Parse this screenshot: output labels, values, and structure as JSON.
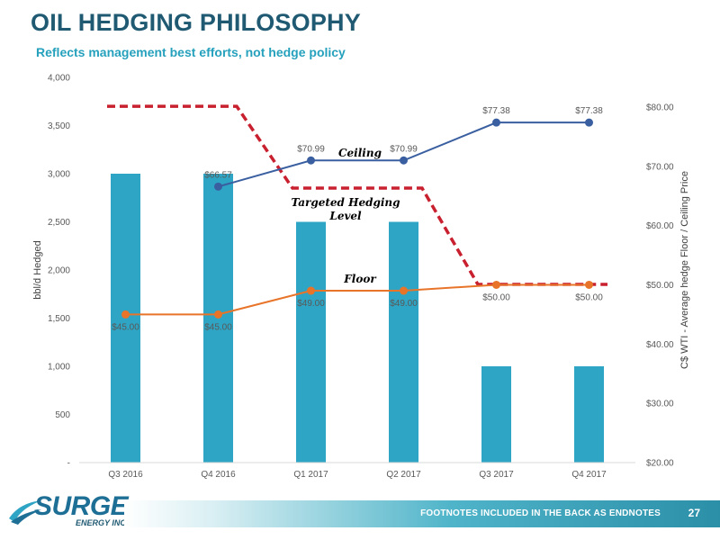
{
  "slide": {
    "title": "OIL HEDGING PHILOSOPHY",
    "subtitle": "Reflects management best efforts, not hedge policy"
  },
  "footer": {
    "note": "FOOTNOTES INCLUDED IN THE BACK AS ENDNOTES",
    "page": "27"
  },
  "logo": {
    "name": "SURGE",
    "sub": "ENERGY INC",
    "icon": "swoosh-logo-icon"
  },
  "chart_data": {
    "type": "bar",
    "categories": [
      "Q3 2016",
      "Q4 2016",
      "Q1 2017",
      "Q2 2017",
      "Q3 2017",
      "Q4 2017"
    ],
    "bars": {
      "values": [
        3000,
        3000,
        2500,
        2500,
        1000,
        1000
      ],
      "color": "#2ea5c4"
    },
    "ylabel_left": "bbl/d Hedged",
    "ylabel_right": "C$ WTI - Average hedge Floor / Ceiling Price",
    "ylim_left": [
      0,
      4000
    ],
    "ylim_right": [
      20,
      85
    ],
    "left_ticks": [
      "-",
      "500",
      "1,000",
      "1,500",
      "2,000",
      "2,500",
      "3,000",
      "3,500",
      "4,000"
    ],
    "right_ticks": [
      "$20.00",
      "$30.00",
      "$40.00",
      "$50.00",
      "$60.00",
      "$70.00",
      "$80.00"
    ],
    "ceiling": {
      "values": [
        null,
        66.57,
        70.99,
        70.99,
        77.38,
        77.38
      ],
      "labels": [
        "",
        "$66.57",
        "$70.99",
        "$70.99",
        "$77.38",
        "$77.38"
      ],
      "color": "#3a5fa0"
    },
    "floor": {
      "values": [
        45.0,
        45.0,
        49.0,
        49.0,
        50.0,
        50.0
      ],
      "labels": [
        "$45.00",
        "$45.00",
        "$49.00",
        "$49.00",
        "$50.00",
        "$50.00"
      ],
      "color": "#e8742a"
    },
    "targeted": {
      "values": [
        3700,
        3700,
        2850,
        2850,
        1850,
        1850
      ],
      "color": "#c8202f"
    },
    "annotations": {
      "ceiling": "Ceiling",
      "targeted_line1": "Targeted Hedging",
      "targeted_line2": "Level",
      "floor": "Floor"
    },
    "grid": false,
    "legend": "none"
  }
}
